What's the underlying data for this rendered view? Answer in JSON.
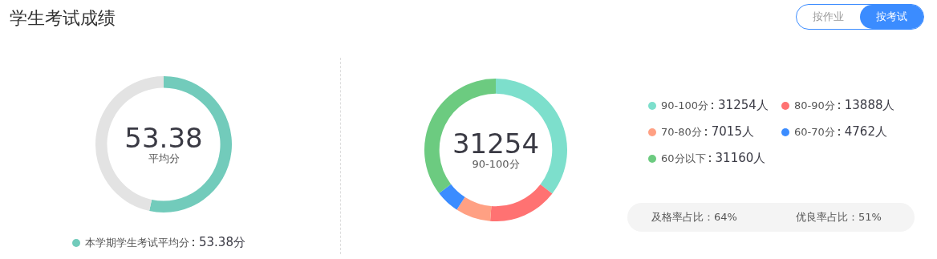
{
  "chart_data": [
    {
      "type": "other",
      "title": "学生考试成绩",
      "annotations": [
        "按作业",
        "按考试"
      ]
    },
    {
      "type": "donut",
      "categories": [
        "本学期学生考试平均分",
        null
      ],
      "values": [
        53.38,
        46.62
      ],
      "colors": [
        "#72cbbb",
        "#e3e3e3"
      ],
      "value_labels": [
        "53.38分",
        null
      ],
      "legend": "bottom",
      "annotations": [
        "53.38",
        "平均分"
      ]
    },
    {
      "type": "donut",
      "categories": [
        "90-100分",
        "80-90分",
        "70-80分",
        "60-70分",
        "60分以下"
      ],
      "values": [
        31254,
        13888,
        7015,
        4762,
        31160
      ],
      "colors": [
        "#7ddfcc",
        "#ff7272",
        "#ffa083",
        "#3b8cff",
        "#6ccb80"
      ],
      "value_labels": [
        "31254人",
        "13888人",
        "7015人",
        "4762人",
        "31160人"
      ],
      "legend": "right",
      "annotations": [
        "31254",
        "90-100分",
        "及格率占比：64%",
        "优良率占比：51%"
      ]
    }
  ]
}
